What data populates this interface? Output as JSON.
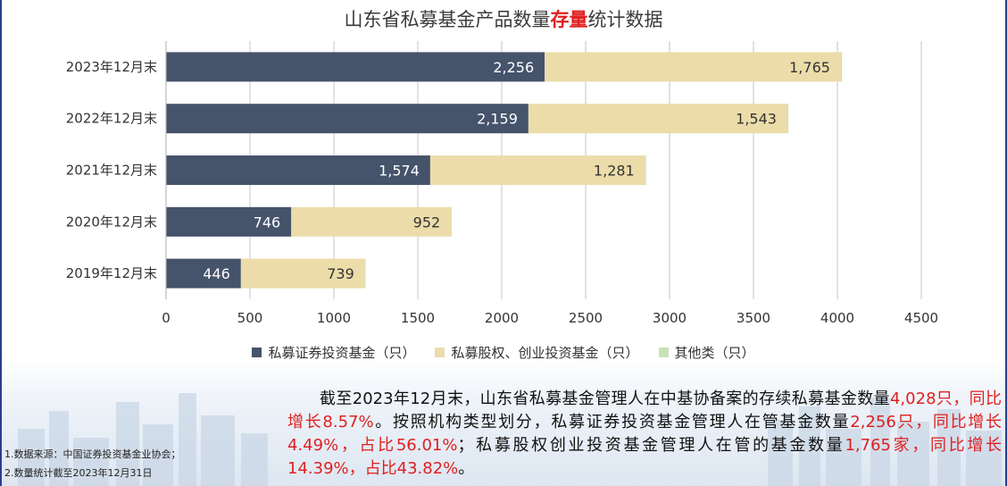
{
  "title": {
    "prefix": "山东省私募基金产品数量",
    "highlight": "存量",
    "suffix": "统计数据"
  },
  "chart_data": {
    "type": "bar",
    "orientation": "horizontal",
    "stacked": true,
    "categories": [
      "2023年12月末",
      "2022年12月末",
      "2021年12月末",
      "2020年12月末",
      "2019年12月末"
    ],
    "series": [
      {
        "name": "私募证券投资基金（只）",
        "color": "#45536b",
        "values": [
          2256,
          2159,
          1574,
          746,
          446
        ]
      },
      {
        "name": "私募股权、创业投资基金（只）",
        "color": "#ebdcaa",
        "values": [
          1765,
          1543,
          1281,
          952,
          739
        ]
      },
      {
        "name": "其他类（只）",
        "color": "#c6e3b5",
        "values": [
          7,
          6,
          5,
          4,
          4
        ]
      }
    ],
    "data_labels": [
      [
        "2,256",
        "2,159",
        "1,574",
        "746",
        "446"
      ],
      [
        "1,765",
        "1,543",
        "1,281",
        "952",
        "739"
      ]
    ],
    "xlim": [
      0,
      4500
    ],
    "xticks": [
      0,
      500,
      1000,
      1500,
      2000,
      2500,
      3000,
      3500,
      4000,
      4500
    ],
    "grid": true,
    "legend_position": "bottom"
  },
  "summary": {
    "p1": "截至2023年12月末，山东省私募基金管理人在中基协备案的存续私募基金数量",
    "r1": "4,028只，同比增长8.57%",
    "p2": "。按照机构类型划分，私募证券投资基金管理人在管基金数量",
    "r2": "2,256只，同比增长4.49%，占比56.01%",
    "p3": "；私募股权创业投资基金管理人在管的基金数量",
    "r3": "1,765家，同比增长14.39%，占比43.82%",
    "p4": "。"
  },
  "notes": [
    "1.数据来源：中国证券投资基金业协会；",
    "2.数量统计截至2023年12月31日"
  ]
}
